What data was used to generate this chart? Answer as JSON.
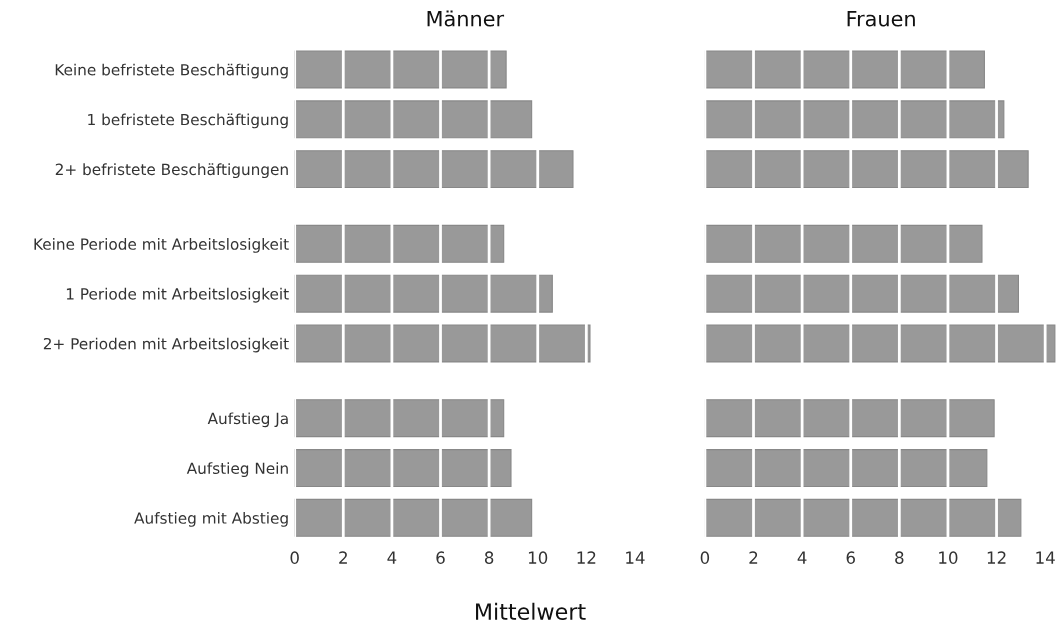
{
  "chart_data": [
    {
      "type": "bar",
      "orientation": "horizontal",
      "title": "Männer",
      "xlabel": "Mittelwert",
      "categories": [
        "Keine befristete Beschäftigung",
        "1 befristete Beschäftigung",
        "2+ befristete Beschäftigungen",
        null,
        "Keine Periode mit Arbeitslosigkeit",
        "1 Periode mit Arbeitslosigkeit",
        "2+ Perioden mit Arbeitslosigkeit",
        null,
        "Aufstieg Ja",
        "Aufstieg Nein",
        "Aufstieg mit Abstieg"
      ],
      "values": [
        8.7,
        9.75,
        11.45,
        null,
        8.6,
        10.6,
        12.15,
        null,
        8.6,
        8.9,
        9.75
      ],
      "color": "#999999",
      "xlim": [
        0,
        14
      ],
      "xticks": [
        0,
        2,
        4,
        6,
        8,
        10,
        12,
        14
      ],
      "grid": "x"
    },
    {
      "type": "bar",
      "orientation": "horizontal",
      "title": "Frauen",
      "categories": [
        null,
        null,
        null,
        null,
        null,
        null,
        null,
        null,
        null,
        null,
        null
      ],
      "values": [
        11.5,
        12.3,
        13.3,
        null,
        11.4,
        12.9,
        14.4,
        null,
        11.9,
        11.6,
        13.0
      ],
      "color": "#999999",
      "xlim": [
        0,
        14.5
      ],
      "xticks": [
        0,
        2,
        4,
        6,
        8,
        10,
        12,
        14
      ],
      "grid": "x"
    }
  ]
}
